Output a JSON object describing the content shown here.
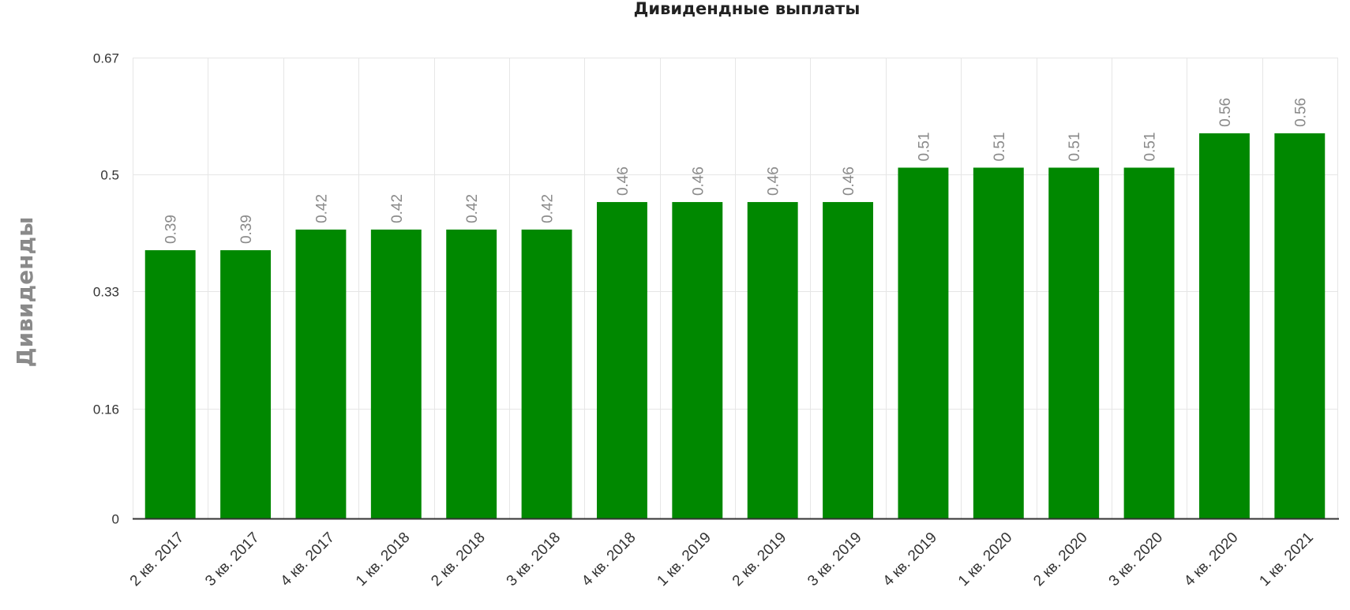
{
  "chart_data": {
    "type": "bar",
    "title": "Дивидендные выплаты",
    "xlabel": "",
    "ylabel": "Дивиденды",
    "categories": [
      "2 кв. 2017",
      "3 кв. 2017",
      "4 кв. 2017",
      "1 кв. 2018",
      "2 кв. 2018",
      "3 кв. 2018",
      "4 кв. 2018",
      "1 кв. 2019",
      "2 кв. 2019",
      "3 кв. 2019",
      "4 кв. 2019",
      "1 кв. 2020",
      "2 кв. 2020",
      "3 кв. 2020",
      "4 кв. 2020",
      "1 кв. 2021"
    ],
    "values": [
      0.39,
      0.39,
      0.42,
      0.42,
      0.42,
      0.42,
      0.46,
      0.46,
      0.46,
      0.46,
      0.51,
      0.51,
      0.51,
      0.51,
      0.56,
      0.56
    ],
    "value_labels": [
      "0.39",
      "0.39",
      "0.42",
      "0.42",
      "0.42",
      "0.42",
      "0.46",
      "0.46",
      "0.46",
      "0.46",
      "0.51",
      "0.51",
      "0.51",
      "0.51",
      "0.56",
      "0.56"
    ],
    "yticks": [
      0,
      0.16,
      0.33,
      0.5,
      0.67
    ],
    "ytick_labels": [
      "0",
      "0.16",
      "0.33",
      "0.5",
      "0.67"
    ],
    "ylim": [
      0,
      0.67
    ],
    "grid": true,
    "colors": {
      "bar": "#008800"
    }
  }
}
